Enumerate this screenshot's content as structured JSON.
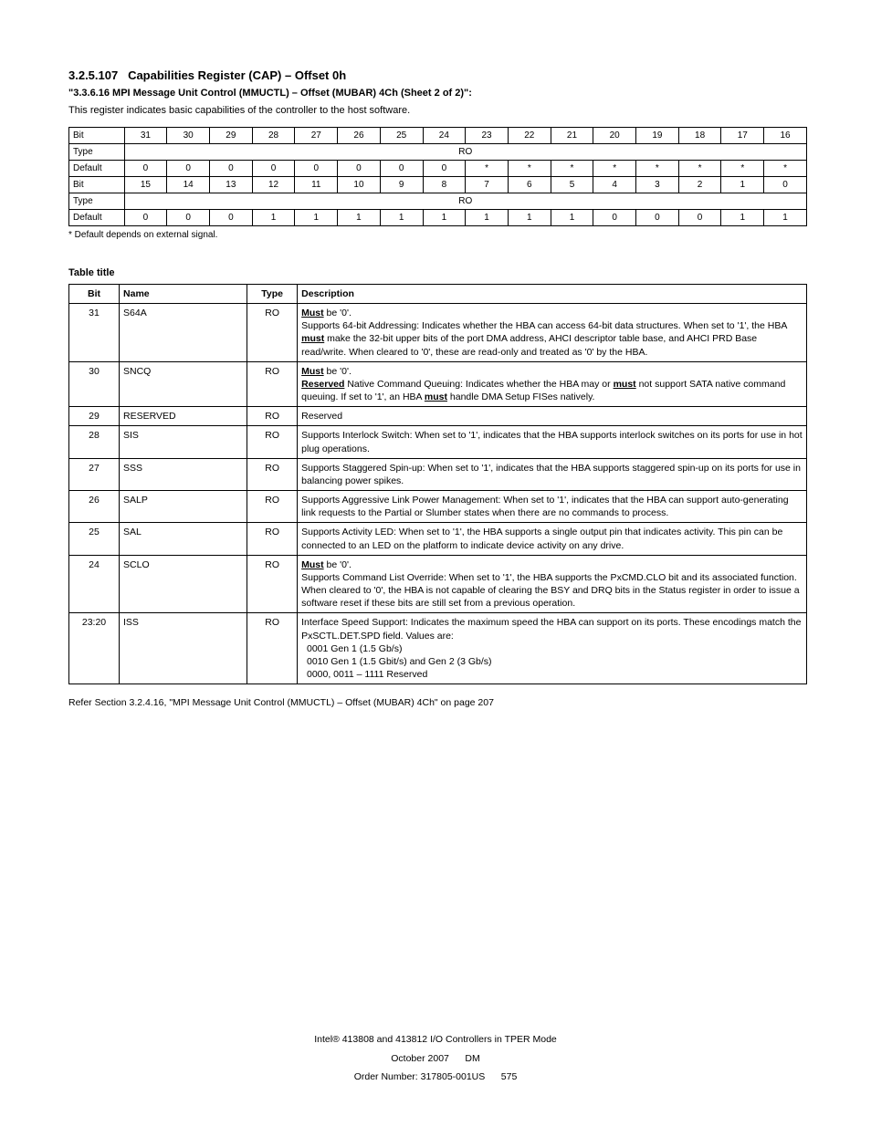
{
  "section": {
    "number": "3.2.5.107",
    "title": "Capabilities Register (CAP) – Offset 0h",
    "subtitle": "\"3.3.6.16 MPI Message Unit Control (MMUCTL) – Offset (MUBAR) 4Ch (Sheet 2 of 2)\":",
    "intro": "This register indicates basic capabilities of the controller to the host software."
  },
  "table1": {
    "label_row0": "Bit",
    "row0": [
      "31",
      "30",
      "29",
      "28",
      "27",
      "26",
      "25",
      "24",
      "23",
      "22",
      "21",
      "20",
      "19",
      "18",
      "17",
      "16"
    ],
    "label_row1": "Type",
    "row1_span": "RO",
    "label_row2": "Default",
    "row2": [
      "0",
      "0",
      "0",
      "0",
      "0",
      "0",
      "0",
      "0",
      "*",
      "*",
      "*",
      "*",
      "*",
      "*",
      "*",
      "*"
    ],
    "label_row3": "Bit",
    "row3": [
      "15",
      "14",
      "13",
      "12",
      "11",
      "10",
      "9",
      "8",
      "7",
      "6",
      "5",
      "4",
      "3",
      "2",
      "1",
      "0"
    ],
    "label_row4": "Type",
    "row4_span": "RO",
    "label_row5": "Default",
    "row5": [
      "0",
      "0",
      "0",
      "1",
      "1",
      "1",
      "1",
      "1",
      "1",
      "1",
      "1",
      "0",
      "0",
      "0",
      "1",
      "1"
    ],
    "note": "* Default depends on external signal."
  },
  "table2": {
    "title": "Table title",
    "columns": [
      "Bit",
      "Name",
      "Type",
      "Description"
    ],
    "rows": [
      {
        "bit": "31",
        "name": "S64A",
        "type": "RO",
        "desc_html": "<span class=\"must\">Must</span> be '0'.<br>Supports 64-bit Addressing: Indicates whether the HBA can access 64-bit data structures. When set to '1', the HBA <span class=\"must\">must</span> make the 32-bit upper bits of the port DMA address, AHCI descriptor table base, and AHCI PRD Base read/write. When cleared to '0', these are read-only and treated as '0' by the HBA."
      },
      {
        "bit": "30",
        "name": "SNCQ",
        "type": "RO",
        "desc_html": "<span class=\"must\">Must</span> be '0'.<br><span class=\"must\">Reserved</span> Native Command Queuing: Indicates whether the HBA may or <span class=\"may\">must</span> not support SATA native command queuing. If set to '1', an HBA <span class=\"must\">must</span> handle DMA Setup FISes natively."
      },
      {
        "bit": "29",
        "name": "RESERVED",
        "type": "RO",
        "desc_html": "Reserved"
      },
      {
        "bit": "28",
        "name": "SIS",
        "type": "RO",
        "desc_html": "Supports Interlock Switch: When set to '1', indicates that the HBA supports interlock switches on its ports for use in hot plug operations."
      },
      {
        "bit": "27",
        "name": "SSS",
        "type": "RO",
        "desc_html": "Supports Staggered Spin-up: When set to '1', indicates that the HBA supports staggered spin-up on its ports for use in balancing power spikes."
      },
      {
        "bit": "26",
        "name": "SALP",
        "type": "RO",
        "desc_html": "Supports Aggressive Link Power Management: When set to '1', indicates that the HBA can support auto-generating link requests to the Partial or Slumber states when there are no commands to process."
      },
      {
        "bit": "25",
        "name": "SAL",
        "type": "RO",
        "desc_html": "Supports Activity LED: When set to '1', the HBA supports a single output pin that indicates activity. This pin can be connected to an LED on the platform to indicate device activity on any drive."
      },
      {
        "bit": "24",
        "name": "SCLO",
        "type": "RO",
        "desc_html": "<span class=\"must\">Must</span> be '0'.<br>Supports Command List Override: When set to '1', the HBA supports the PxCMD.CLO bit and its associated function. When cleared to '0', the HBA is not capable of clearing the BSY and DRQ bits in the Status register in order to issue a software reset if these bits are still set from a previous operation."
      },
      {
        "bit": "23:20",
        "name": "ISS",
        "type": "RO",
        "desc_html": "Interface Speed Support: Indicates the maximum speed the HBA can support on its ports. These encodings match the PxSCTL.DET.SPD field. Values are:<br>&nbsp;&nbsp;0001 Gen 1 (1.5 Gb/s)<br>&nbsp;&nbsp;0010 Gen 1 (1.5 Gbit/s) and Gen 2 (3 Gb/s)<br>&nbsp;&nbsp;0000, 0011 – 1111 Reserved"
      }
    ]
  },
  "refnote": "Refer Section 3.2.4.16, \"MPI Message Unit Control (MMUCTL) – Offset (MUBAR) 4Ch\" on page 207",
  "footer": {
    "title_line": "Intel® 413808 and 413812 I/O Controllers in TPER Mode",
    "date_line": "October 2007",
    "dm_line": "DM",
    "order_line": "Order Number: 317805-001US",
    "page_line": "575"
  }
}
